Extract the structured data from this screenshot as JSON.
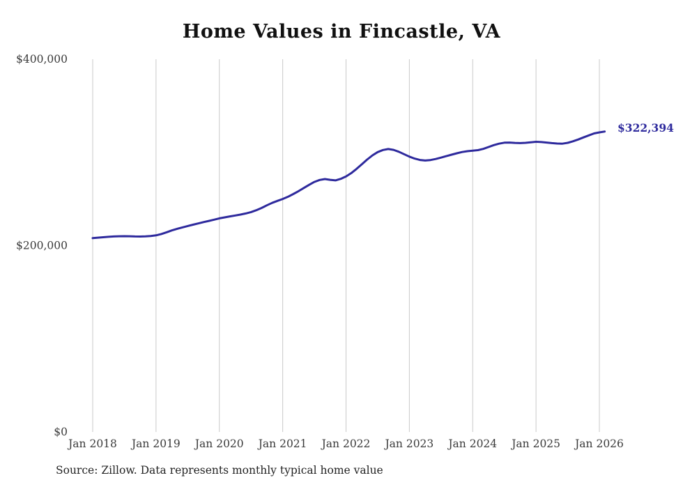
{
  "title": "Home Values in Fincastle, VA",
  "source_note": "Source: Zillow. Data represents monthly typical home value",
  "end_label": "$322,394",
  "colors": {
    "line": "#2e2a9d",
    "grid": "#c9c9c9",
    "tick_text": "#3a3a3a",
    "title_text": "#111111"
  },
  "chart_data": {
    "type": "line",
    "title": "Home Values in Fincastle, VA",
    "xlabel": "",
    "ylabel": "",
    "x_start_month": "Jan 2018",
    "x_end_month": "Feb 2026",
    "x_tick_labels": [
      "Jan 2018",
      "Jan 2019",
      "Jan 2020",
      "Jan 2021",
      "Jan 2022",
      "Jan 2023",
      "Jan 2024",
      "Jan 2025",
      "Jan 2026"
    ],
    "y_tick_labels": [
      "$0",
      "$200,000",
      "$400,000"
    ],
    "y_tick_values": [
      0,
      200000,
      400000
    ],
    "ylim": [
      0,
      400000
    ],
    "grid": "vertical-only",
    "legend": "none",
    "end_value": 322394,
    "values": [
      208000,
      208500,
      209000,
      209400,
      209800,
      210000,
      210100,
      210000,
      209800,
      209700,
      209900,
      210300,
      211000,
      212400,
      214300,
      216300,
      218000,
      219500,
      221000,
      222400,
      223800,
      225200,
      226500,
      227800,
      229200,
      230300,
      231300,
      232300,
      233300,
      234500,
      236000,
      238000,
      240400,
      243200,
      245800,
      248000,
      250000,
      252400,
      255300,
      258400,
      261800,
      265200,
      268300,
      270400,
      271400,
      270600,
      270000,
      271600,
      274200,
      277800,
      282300,
      287300,
      292300,
      296800,
      300300,
      302600,
      303600,
      302700,
      300700,
      298100,
      295500,
      293400,
      291900,
      291300,
      291800,
      292900,
      294400,
      296000,
      297600,
      299100,
      300400,
      301300,
      301900,
      302400,
      303800,
      305800,
      307800,
      309400,
      310400,
      310600,
      310200,
      310000,
      310300,
      310800,
      311400,
      311100,
      310600,
      310000,
      309500,
      309400,
      310300,
      311900,
      313900,
      316100,
      318300,
      320400,
      321500,
      322394
    ]
  }
}
